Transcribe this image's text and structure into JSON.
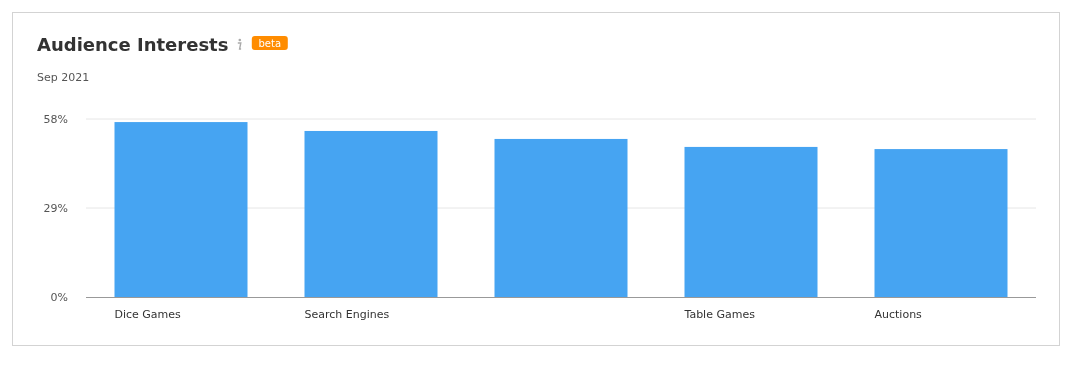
{
  "chart_data": {
    "type": "bar",
    "title": "Audience Interests",
    "subtitle": "Sep 2021",
    "annotations": [
      "beta"
    ],
    "categories": [
      "Dice Games",
      "Search Engines",
      null,
      "Table Games",
      "Auctions"
    ],
    "values": [
      57,
      54.1,
      51.5,
      48.9,
      48.2
    ],
    "color": "#46a4f2",
    "ylim": [
      0,
      58
    ],
    "yticks": [
      {
        "value": 0,
        "label": "0%"
      },
      {
        "value": 29,
        "label": "29%"
      },
      {
        "value": 58,
        "label": "58%"
      }
    ],
    "grid": "y"
  }
}
